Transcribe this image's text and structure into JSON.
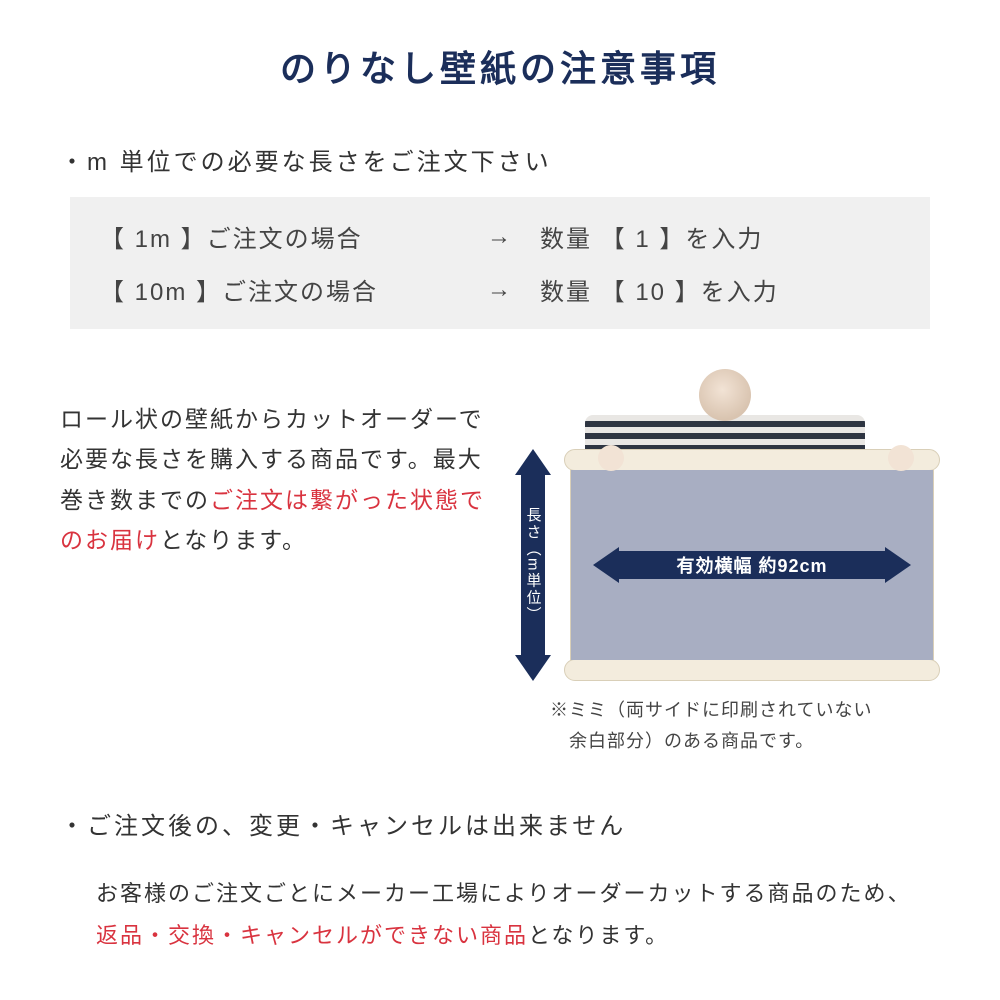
{
  "colors": {
    "title": "#1b2e5a",
    "text": "#333333",
    "red": "#d9333f",
    "box_bg": "#f0f0f0",
    "arrow": "#1b2e5a",
    "wallpaper": "#a8aec2",
    "roll_tube": "#f3ecdd"
  },
  "title": "のりなし壁紙の注意事項",
  "section1": {
    "heading": "・m 単位での必要な長さをご注文下さい",
    "examples": [
      {
        "left": "【 1m 】ご注文の場合",
        "arrow": "→",
        "right": "数量 【 1 】を入力"
      },
      {
        "left": "【 10m 】ご注文の場合",
        "arrow": "→",
        "right": "数量 【 10 】を入力"
      }
    ]
  },
  "mid": {
    "line1": "ロール状の壁紙からカットオーダーで必要な長さを購入する商品です。最大巻き数までの",
    "line2_red": "ご注文は繋がった状態でのお届け",
    "line3": "となります。"
  },
  "diagram": {
    "v_label": "長さ（m単位）",
    "h_label": "有効横幅 約92cm",
    "mimi_note1": "※ミミ（両サイドに印刷されていない",
    "mimi_note2": "　余白部分）のある商品です。"
  },
  "section2": {
    "heading": "・ご注文後の、変更・キャンセルは出来ません",
    "body1": "お客様のご注文ごとにメーカー工場によりオーダーカットする商品のため、",
    "body_red": "返品・交換・キャンセルができない商品",
    "body2": "となります。"
  }
}
